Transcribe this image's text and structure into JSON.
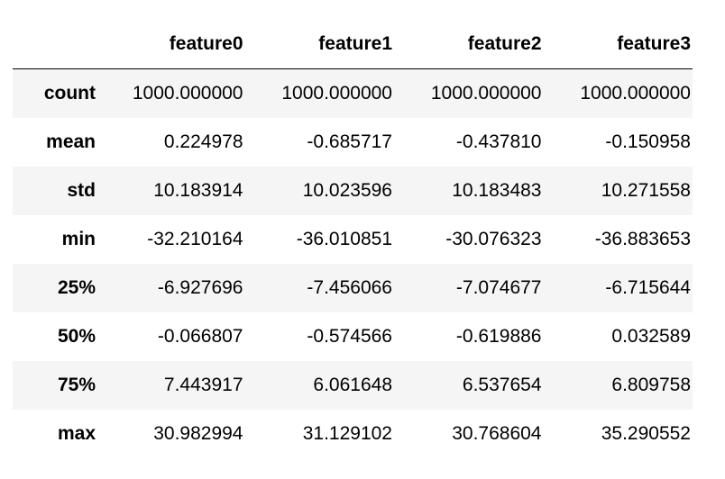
{
  "table": {
    "columns": [
      "feature0",
      "feature1",
      "feature2",
      "feature3"
    ],
    "rows": [
      {
        "label": "count",
        "values": [
          "1000.000000",
          "1000.000000",
          "1000.000000",
          "1000.000000"
        ]
      },
      {
        "label": "mean",
        "values": [
          "0.224978",
          "-0.685717",
          "-0.437810",
          "-0.150958"
        ]
      },
      {
        "label": "std",
        "values": [
          "10.183914",
          "10.023596",
          "10.183483",
          "10.271558"
        ]
      },
      {
        "label": "min",
        "values": [
          "-32.210164",
          "-36.010851",
          "-30.076323",
          "-36.883653"
        ]
      },
      {
        "label": "25%",
        "values": [
          "-6.927696",
          "-7.456066",
          "-7.074677",
          "-6.715644"
        ]
      },
      {
        "label": "50%",
        "values": [
          "-0.066807",
          "-0.574566",
          "-0.619886",
          "0.032589"
        ]
      },
      {
        "label": "75%",
        "values": [
          "7.443917",
          "6.061648",
          "6.537654",
          "6.809758"
        ]
      },
      {
        "label": "max",
        "values": [
          "30.982994",
          "31.129102",
          "30.768604",
          "35.290552"
        ]
      }
    ]
  },
  "colors": {
    "stripe": "#f5f5f5",
    "header_rule": "#000000"
  }
}
